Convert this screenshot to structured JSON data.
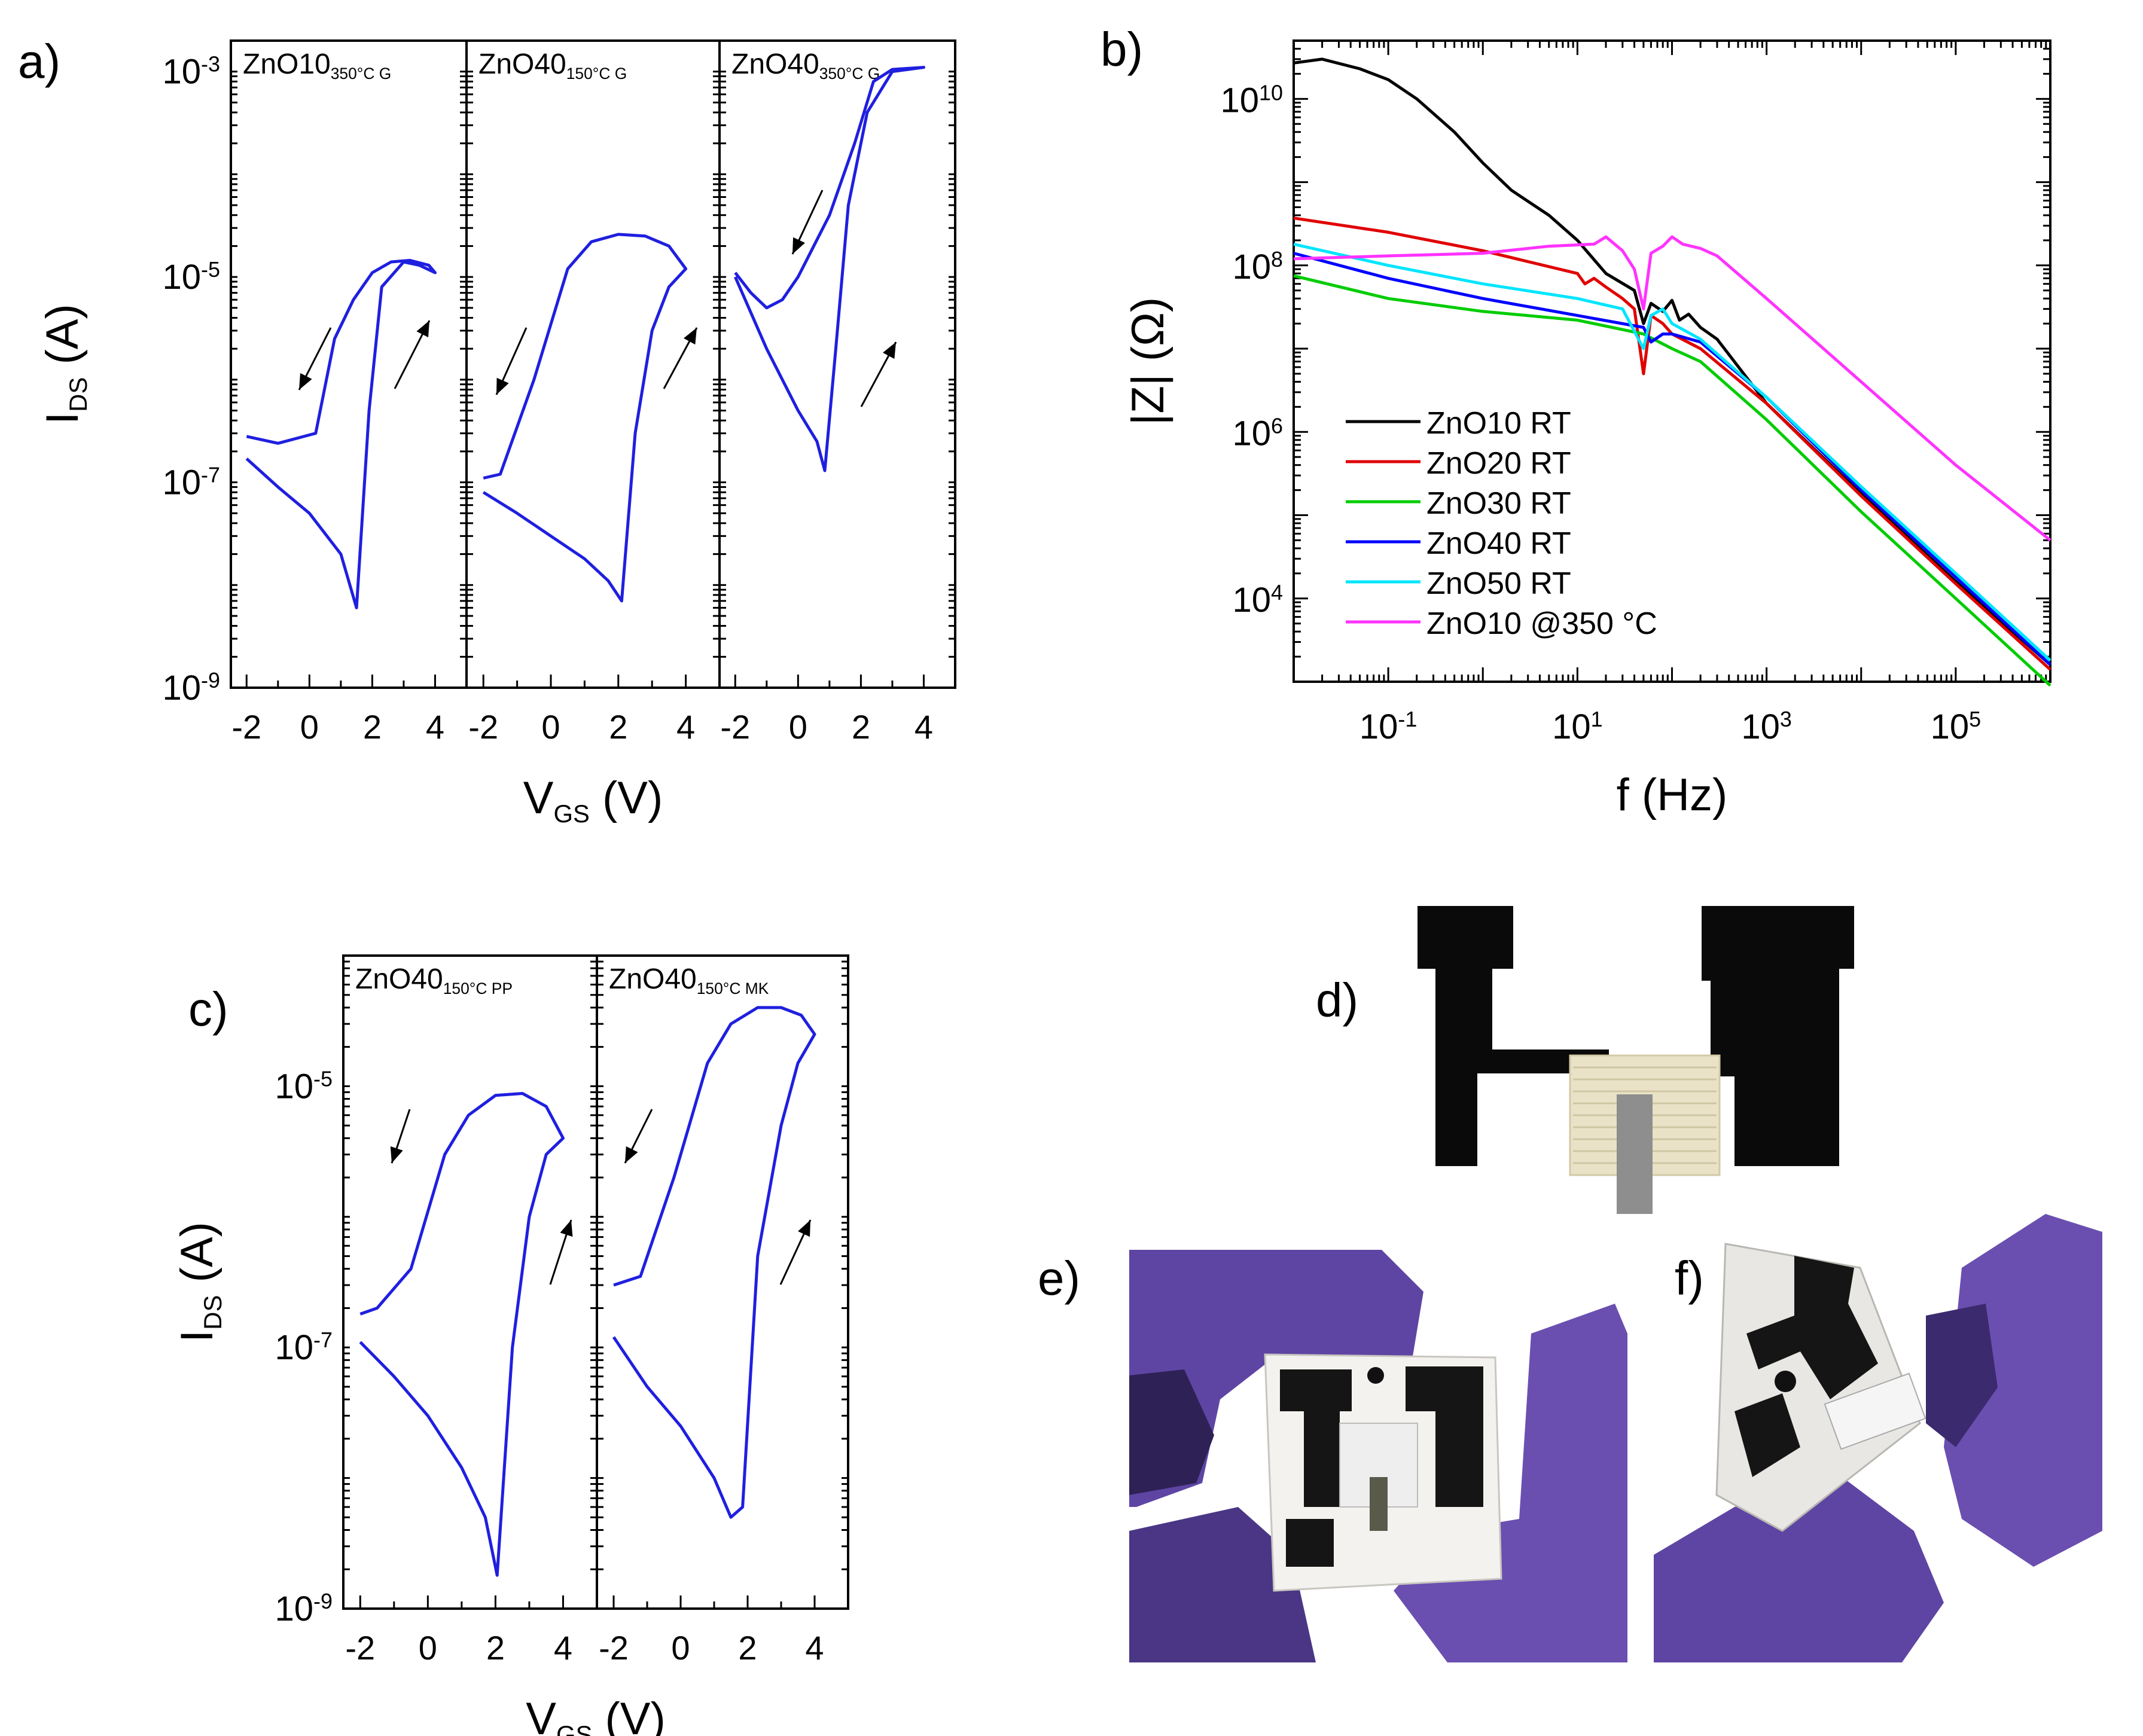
{
  "panels": {
    "a": {
      "tag": "a)",
      "xlabel_main": "V",
      "xlabel_sub": "GS",
      "xlabel_unit": " (V)",
      "ylabel_main": "I",
      "ylabel_sub": "DS",
      "ylabel_unit": " (A)",
      "ytick_base": "10",
      "yticks": [
        {
          "exp": "-3"
        },
        {
          "exp": "-5"
        },
        {
          "exp": "-7"
        },
        {
          "exp": "-9"
        }
      ],
      "xticks": [
        "-2",
        "0",
        "2",
        "4"
      ],
      "subplots": [
        {
          "name": "ZnO10",
          "sub": "350°C G"
        },
        {
          "name": "ZnO40",
          "sub": "150°C G"
        },
        {
          "name": "ZnO40",
          "sub": "350°C G"
        }
      ]
    },
    "b": {
      "tag": "b)",
      "xlabel": "f (Hz)",
      "ylabel": "|Z| (Ω)",
      "ytick_base": "10",
      "yticks": [
        {
          "exp": "10"
        },
        {
          "exp": "8"
        },
        {
          "exp": "6"
        },
        {
          "exp": "4"
        }
      ],
      "xticks": [
        {
          "exp": "-1"
        },
        {
          "exp": "1"
        },
        {
          "exp": "3"
        },
        {
          "exp": "5"
        }
      ]
    },
    "c": {
      "tag": "c)",
      "xlabel_main": "V",
      "xlabel_sub": "GS",
      "xlabel_unit": " (V)",
      "ylabel_main": "I",
      "ylabel_sub": "DS",
      "ylabel_unit": " (A)",
      "ytick_base": "10",
      "yticks": [
        {
          "exp": "-5"
        },
        {
          "exp": "-7"
        },
        {
          "exp": "-9"
        }
      ],
      "xticks": [
        "-2",
        "0",
        "2",
        "4"
      ],
      "subplots": [
        {
          "name": "ZnO40",
          "sub": "150°C PP"
        },
        {
          "name": "ZnO40",
          "sub": "150°C MK"
        }
      ]
    },
    "d": {
      "tag": "d)"
    },
    "e": {
      "tag": "e)"
    },
    "f": {
      "tag": "f)"
    }
  },
  "colors": {
    "transfer": "#1f1fe0",
    "glove": "#6a4fb0",
    "glove_dark": "#3b2a6e"
  },
  "chart_data": [
    {
      "id": "a",
      "type": "line",
      "scale_y": "log",
      "xlim": [
        -2.5,
        5
      ],
      "ylim": [
        1e-09,
        0.002
      ],
      "series": [
        {
          "name": "ZnO10 350°C G",
          "x": [
            -2,
            -1,
            0,
            1,
            1.5,
            1.9,
            2.3,
            3,
            3.5,
            4,
            3.8,
            3.2,
            2.6,
            2,
            1.4,
            0.8,
            0.2,
            -1,
            -2
          ],
          "y": [
            1.7e-07,
            9e-08,
            5e-08,
            2e-08,
            6e-09,
            5e-07,
            8e-06,
            1.4e-05,
            1.3e-05,
            1.1e-05,
            1.3e-05,
            1.45e-05,
            1.4e-05,
            1.1e-05,
            6e-06,
            2.5e-06,
            3e-07,
            2.4e-07,
            2.8e-07
          ]
        },
        {
          "name": "ZnO40 150°C G",
          "x": [
            -2,
            -1,
            0,
            1,
            1.7,
            2.1,
            2.5,
            3,
            3.5,
            4,
            3.5,
            2.8,
            2,
            1.2,
            0.5,
            -0.5,
            -1.5,
            -2
          ],
          "y": [
            8e-08,
            5e-08,
            3e-08,
            1.8e-08,
            1.1e-08,
            7e-09,
            3e-07,
            3e-06,
            8e-06,
            1.2e-05,
            2e-05,
            2.5e-05,
            2.6e-05,
            2.2e-05,
            1.2e-05,
            1e-06,
            1.2e-07,
            1.1e-07
          ]
        },
        {
          "name": "ZnO40 350°C G",
          "x": [
            -2,
            -1,
            0,
            0.6,
            0.85,
            1.2,
            1.6,
            2.2,
            3,
            4,
            3,
            2.4,
            1.8,
            1,
            0,
            -0.5,
            -1,
            -1.5,
            -2
          ],
          "y": [
            1e-05,
            2e-06,
            5e-07,
            2.5e-07,
            1.3e-07,
            2e-06,
            5e-05,
            0.0004,
            0.001,
            0.0011,
            0.00105,
            0.0008,
            0.0002,
            4e-05,
            1e-05,
            6e-06,
            5e-06,
            7e-06,
            1.1e-05
          ]
        }
      ]
    },
    {
      "id": "b",
      "type": "line",
      "scale_x": "log",
      "scale_y": "log",
      "xlim": [
        0.01,
        1000000
      ],
      "ylim": [
        1000,
        50000000000
      ],
      "xlabel": "f (Hz)",
      "ylabel": "|Z| (Ω)",
      "legend": "bottom-left",
      "series": [
        {
          "name": "ZnO10 RT",
          "color": "#000000",
          "x": [
            0.01,
            0.02,
            0.05,
            0.1,
            0.2,
            0.5,
            1,
            2,
            5,
            10,
            20,
            40,
            50,
            60,
            80,
            100,
            120,
            150,
            200,
            300,
            1000,
            10000,
            100000,
            1000000
          ],
          "y": [
            27000000000.0,
            30000000000.0,
            23000000000.0,
            17000000000.0,
            10000000000.0,
            4000000000.0,
            1700000000.0,
            800000000.0,
            400000000.0,
            200000000.0,
            80000000.0,
            50000000.0,
            20000000.0,
            35000000.0,
            28000000.0,
            38000000.0,
            22000000.0,
            26000000.0,
            18000000.0,
            13000000.0,
            2200000.0,
            180000.0,
            16000.0,
            1600.0
          ]
        },
        {
          "name": "ZnO20 RT",
          "color": "#e00000",
          "x": [
            0.01,
            0.1,
            1,
            10,
            12,
            15,
            20,
            30,
            40,
            50,
            60,
            80,
            100,
            200,
            1000,
            10000,
            100000,
            1000000
          ],
          "y": [
            370000000.0,
            250000000.0,
            150000000.0,
            80000000.0,
            60000000.0,
            70000000.0,
            55000000.0,
            40000000.0,
            30000000.0,
            5000000.0,
            25000000.0,
            20000000.0,
            15000000.0,
            10000000.0,
            2200000.0,
            170000.0,
            15000.0,
            1400.0
          ]
        },
        {
          "name": "ZnO30 RT",
          "color": "#00cc00",
          "x": [
            0.01,
            0.1,
            1,
            10,
            50,
            100,
            200,
            1000,
            10000,
            100000,
            1000000
          ],
          "y": [
            75000000.0,
            40000000.0,
            28000000.0,
            22000000.0,
            15000000.0,
            10000000.0,
            7000000.0,
            1400000.0,
            110000.0,
            10000.0,
            900.0
          ]
        },
        {
          "name": "ZnO40 RT",
          "color": "#0000ff",
          "x": [
            0.01,
            0.1,
            1,
            10,
            50,
            60,
            80,
            100,
            200,
            1000,
            10000,
            100000,
            1000000
          ],
          "y": [
            140000000.0,
            70000000.0,
            40000000.0,
            25000000.0,
            18000000.0,
            12000000.0,
            15000000.0,
            15000000.0,
            12000000.0,
            2600000.0,
            200000.0,
            18000.0,
            1600.0
          ]
        },
        {
          "name": "ZnO50 RT",
          "color": "#00e5ff",
          "x": [
            0.01,
            0.1,
            1,
            10,
            30,
            50,
            60,
            80,
            100,
            200,
            1000,
            10000,
            100000,
            1000000
          ],
          "y": [
            180000000.0,
            100000000.0,
            60000000.0,
            40000000.0,
            30000000.0,
            10000000.0,
            25000000.0,
            30000000.0,
            20000000.0,
            13000000.0,
            2600000.0,
            220000.0,
            20000.0,
            1800.0
          ]
        },
        {
          "name": "ZnO10 @350 °C",
          "color": "#ff33ff",
          "x": [
            0.01,
            0.1,
            1,
            5,
            15,
            20,
            30,
            40,
            50,
            60,
            80,
            100,
            130,
            200,
            300,
            1000,
            10000,
            100000,
            1000000
          ],
          "y": [
            120000000.0,
            130000000.0,
            140000000.0,
            170000000.0,
            180000000.0,
            220000000.0,
            150000000.0,
            90000000.0,
            30000000.0,
            140000000.0,
            170000000.0,
            220000000.0,
            180000000.0,
            160000000.0,
            130000000.0,
            40000000.0,
            4000000.0,
            400000.0,
            50000.0
          ]
        }
      ]
    },
    {
      "id": "c",
      "type": "line",
      "scale_y": "log",
      "xlim": [
        -2.5,
        5
      ],
      "ylim": [
        1e-09,
        0.0001
      ],
      "series": [
        {
          "name": "ZnO40 150°C PP",
          "x": [
            -2,
            -1,
            0,
            1,
            1.7,
            2.05,
            2.5,
            3,
            3.5,
            4,
            3.5,
            2.8,
            2,
            1.2,
            0.5,
            -0.5,
            -1.5,
            -2
          ],
          "y": [
            1.1e-07,
            6e-08,
            3e-08,
            1.2e-08,
            5e-09,
            1.8e-09,
            1e-07,
            1e-06,
            3e-06,
            4e-06,
            7e-06,
            8.8e-06,
            8.5e-06,
            6e-06,
            3e-06,
            4e-07,
            2e-07,
            1.8e-07
          ]
        },
        {
          "name": "ZnO40 150°C MK",
          "x": [
            -2,
            -1,
            0,
            1,
            1.5,
            1.85,
            2.3,
            3,
            3.5,
            4,
            3.6,
            3,
            2.3,
            1.5,
            0.8,
            -0.2,
            -1.2,
            -2
          ],
          "y": [
            1.2e-07,
            5e-08,
            2.5e-08,
            1e-08,
            5e-09,
            6e-09,
            5e-07,
            5e-06,
            1.5e-05,
            2.5e-05,
            3.5e-05,
            4e-05,
            4e-05,
            3e-05,
            1.5e-05,
            2e-06,
            3.5e-07,
            3e-07
          ]
        }
      ]
    }
  ]
}
